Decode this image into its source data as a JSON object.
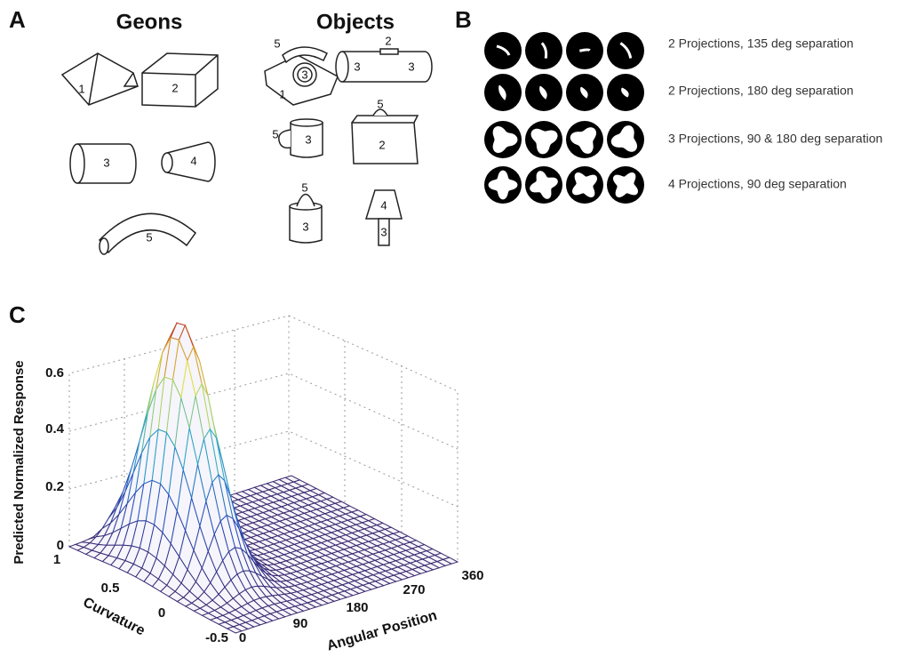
{
  "panel_a": {
    "label": "A",
    "geons_title": "Geons",
    "objects_title": "Objects",
    "geon_labels": [
      "1",
      "2",
      "3",
      "4",
      "5"
    ],
    "object_labels": {
      "telephone": [
        "5",
        "3",
        "1"
      ],
      "flashlight": [
        "3",
        "2",
        "3"
      ],
      "mug": [
        "5",
        "3"
      ],
      "briefcase": [
        "5",
        "2"
      ],
      "bucket": [
        "5",
        "3"
      ],
      "lamp": [
        "4",
        "3"
      ]
    }
  },
  "panel_b": {
    "label": "B",
    "rows": [
      "2 Projections, 135 deg separation",
      "2 Projections, 180 deg separation",
      "3 Projections, 90 & 180 deg separation",
      "4 Projections, 90 deg separation"
    ]
  },
  "panel_c": {
    "label": "C",
    "z_label": "Predicted Normalized Response",
    "z_ticks": [
      "0",
      "0.2",
      "0.4",
      "0.6"
    ],
    "y_label": "Curvature",
    "y_ticks": [
      "1",
      "0.5",
      "0",
      "-0.5"
    ],
    "x_label": "Angular Position",
    "x_ticks": [
      "0",
      "90",
      "180",
      "270",
      "360"
    ]
  }
}
